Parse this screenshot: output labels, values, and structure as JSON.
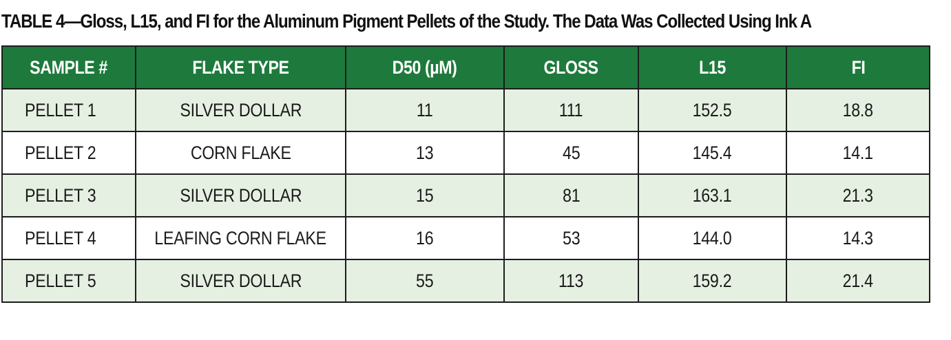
{
  "caption": "TABLE 4—Gloss, L15, and FI for the Aluminum Pigment Pellets of the Study. The Data Was Collected Using Ink A",
  "table": {
    "headers": [
      "SAMPLE #",
      "FLAKE TYPE",
      "D50 (µM)",
      "GLOSS",
      "L15",
      "FI"
    ],
    "rows": [
      [
        "PELLET 1",
        "SILVER DOLLAR",
        "11",
        "111",
        "152.5",
        "18.8"
      ],
      [
        "PELLET 2",
        "CORN FLAKE",
        "13",
        "45",
        "145.4",
        "14.1"
      ],
      [
        "PELLET 3",
        "SILVER DOLLAR",
        "15",
        "81",
        "163.1",
        "21.3"
      ],
      [
        "PELLET 4",
        "LEAFING CORN FLAKE",
        "16",
        "53",
        "144.0",
        "14.3"
      ],
      [
        "PELLET 5",
        "SILVER DOLLAR",
        "55",
        "113",
        "159.2",
        "21.4"
      ]
    ]
  },
  "colors": {
    "header_bg": "#1e7a3c",
    "header_text": "#ffffff",
    "shaded_row_bg": "#e6f0e2",
    "border": "#1c1c1c"
  }
}
